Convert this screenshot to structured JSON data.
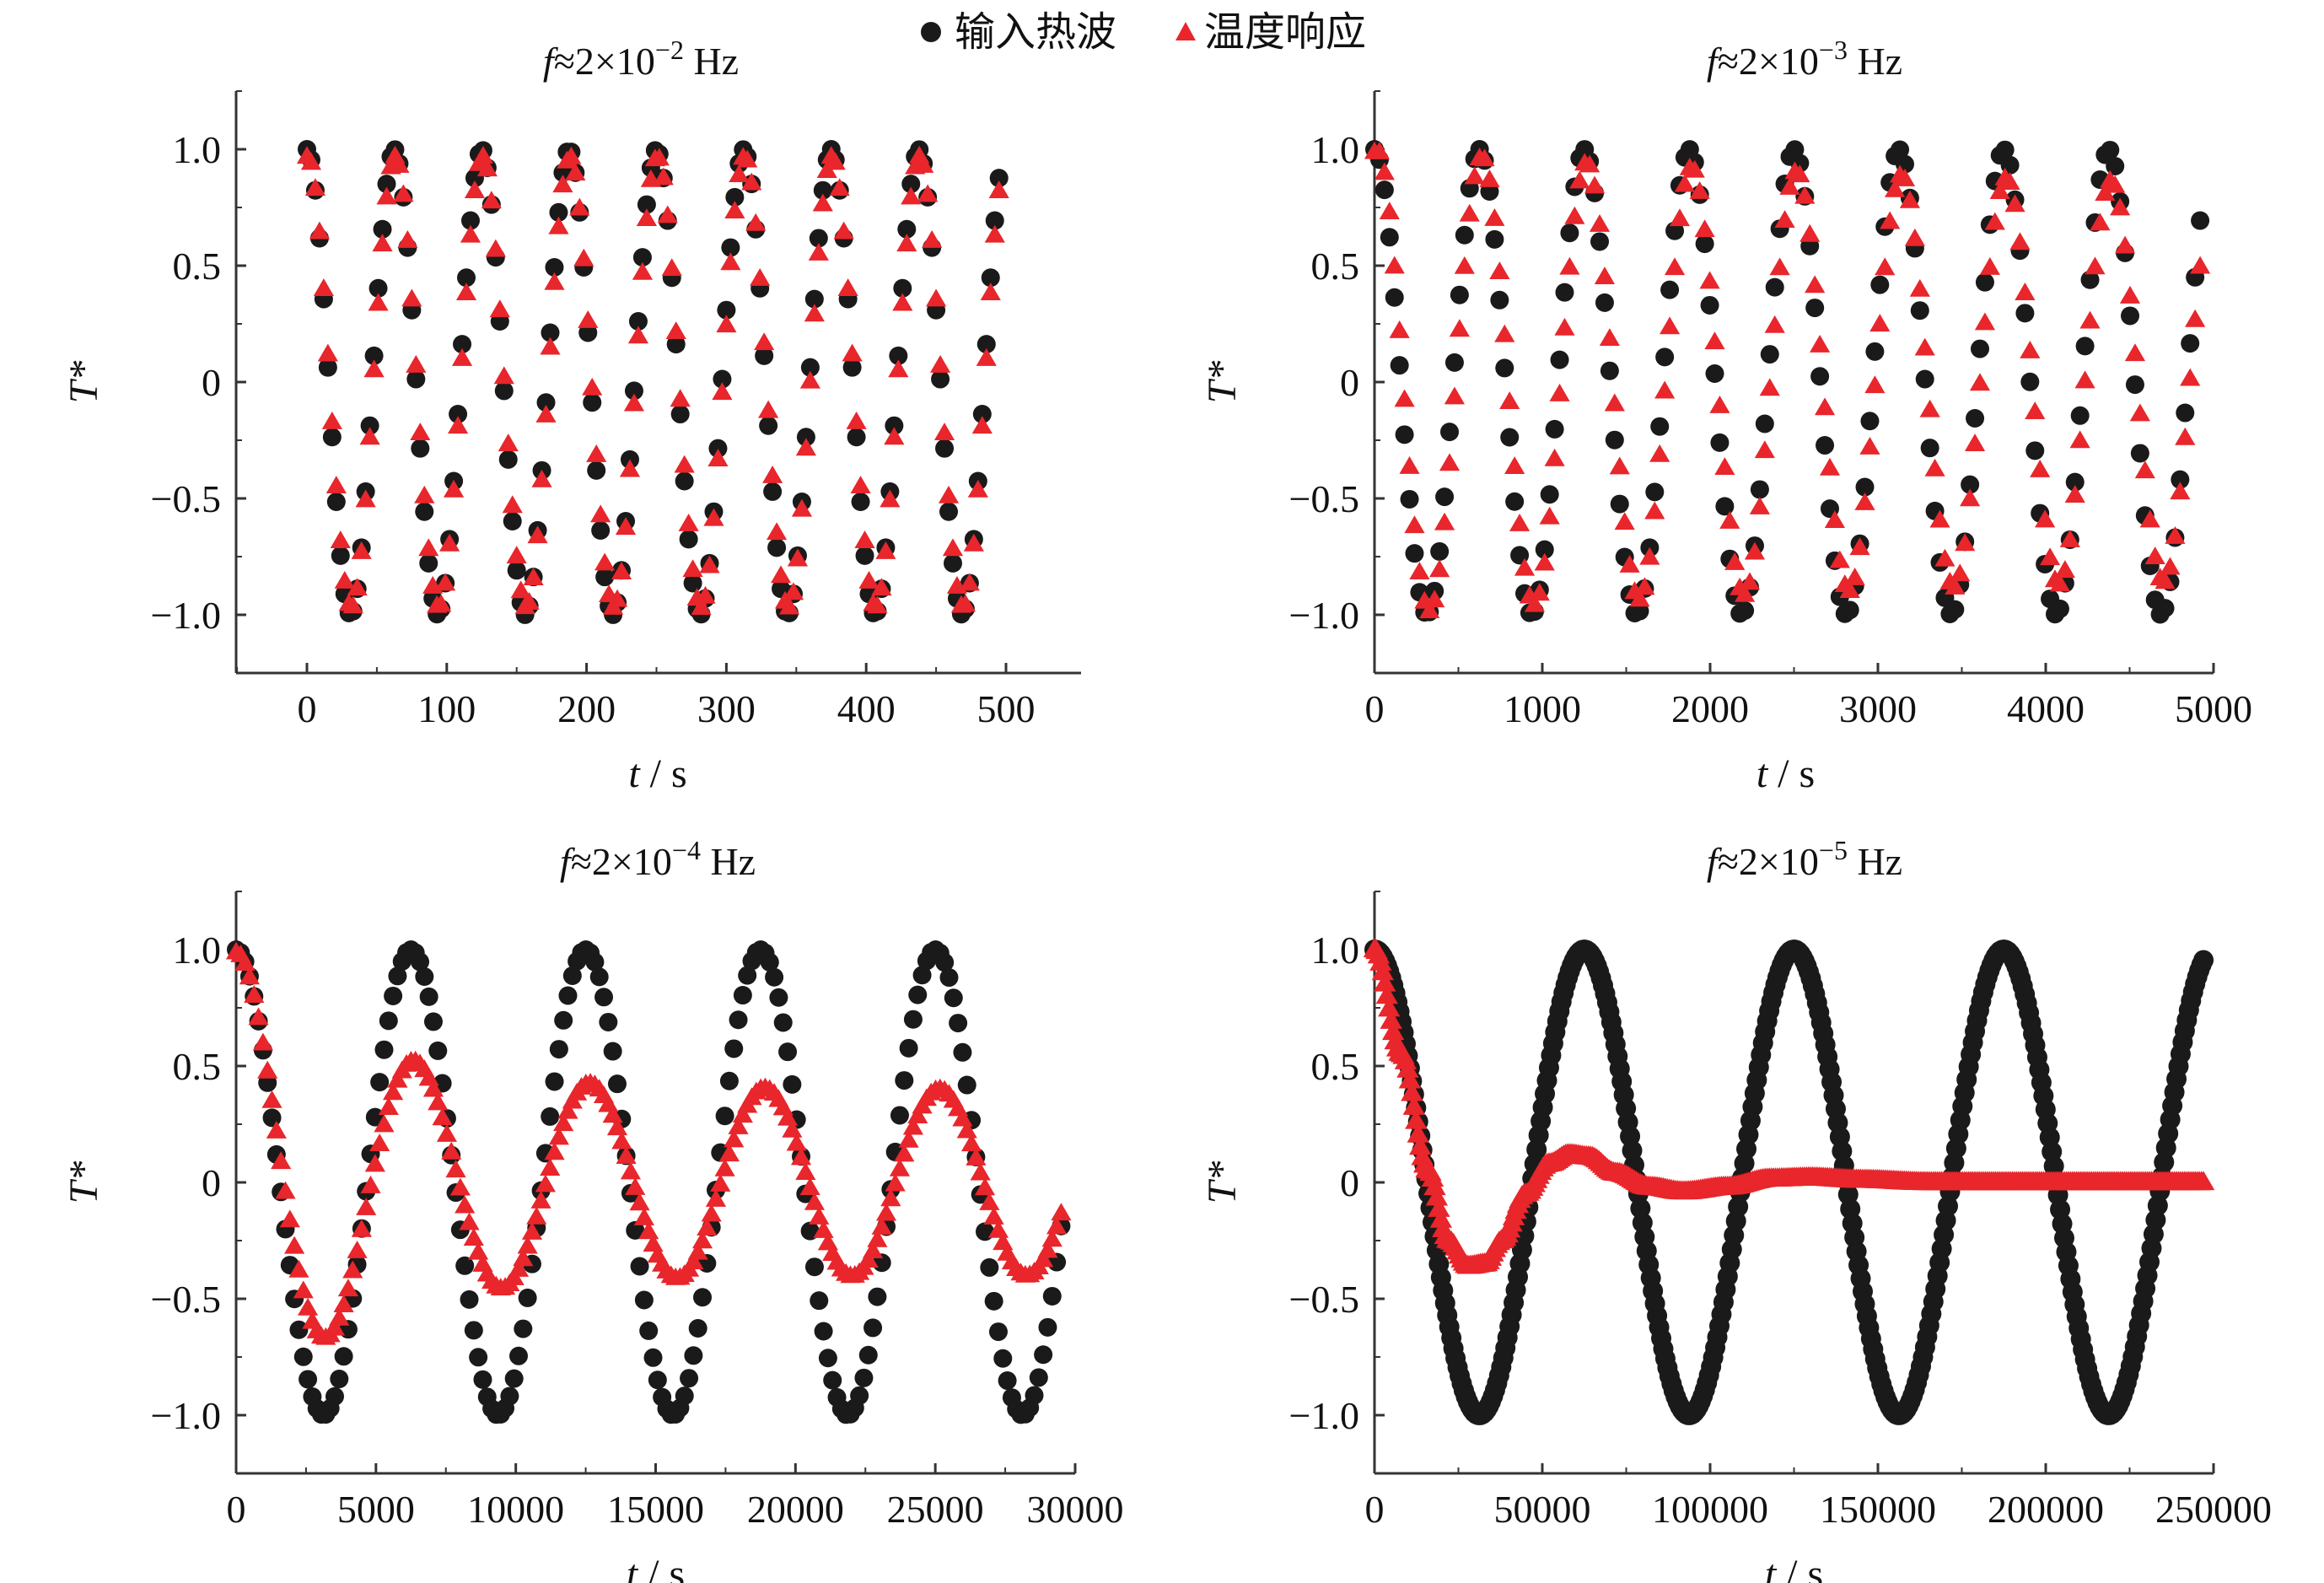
{
  "legend": {
    "input_label": "输入热波",
    "response_label": "温度响应",
    "input_color": "#1a1a1a",
    "response_color": "#e8262b",
    "input_marker": "circle",
    "response_marker": "triangle-up"
  },
  "chart_data": [
    {
      "type": "scatter",
      "title": "f≈2×10⁻² Hz",
      "title_parts": {
        "f": "f",
        "rest": "≈2×10",
        "exp": "−2",
        "unit": " Hz"
      },
      "xlabel_var": "t",
      "xlabel_unit": " / s",
      "ylabel": "T*",
      "xlim": [
        -50,
        550
      ],
      "ylim": [
        -1.25,
        1.25
      ],
      "xticks": [
        0,
        100,
        200,
        300,
        400,
        500
      ],
      "xtick_labels": [
        "0",
        "100",
        "200",
        "300",
        "400",
        "500"
      ],
      "yticks": [
        1.0,
        0.5,
        0,
        -0.5,
        -1.0
      ],
      "ytick_labels": [
        "1.0",
        "0.5",
        "0",
        "−0.5",
        "−1.0"
      ],
      "series": [
        {
          "name": "输入热波",
          "marker": "circle",
          "x_start": 0,
          "x_end": 495,
          "n_points": 166,
          "period": 62.5,
          "amplitude": 1.0,
          "lag": 0,
          "decay": 0,
          "baseline": 0
        },
        {
          "name": "温度响应",
          "marker": "triangle-up",
          "x_start": 0,
          "x_end": 495,
          "n_points": 166,
          "period": 62.5,
          "amplitude": 0.97,
          "lag": 0.6,
          "decay": 0,
          "baseline": 0
        }
      ]
    },
    {
      "type": "scatter",
      "title": "f≈2×10⁻³ Hz",
      "title_parts": {
        "f": "f",
        "rest": "≈2×10",
        "exp": "−3",
        "unit": " Hz"
      },
      "xlabel_var": "t",
      "xlabel_unit": " / s",
      "ylabel": "T*",
      "xlim": [
        0,
        5000
      ],
      "ylim": [
        -1.25,
        1.25
      ],
      "xticks": [
        0,
        1000,
        2000,
        3000,
        4000,
        5000
      ],
      "xtick_labels": [
        "0",
        "1000",
        "2000",
        "3000",
        "4000",
        "5000"
      ],
      "yticks": [
        1.0,
        0.5,
        0,
        -0.5,
        -1.0
      ],
      "ytick_labels": [
        "1.0",
        "0.5",
        "0",
        "−0.5",
        "−1.0"
      ],
      "series": [
        {
          "name": "输入热波",
          "marker": "circle",
          "x_start": 0,
          "x_end": 4920,
          "n_points": 166,
          "period": 625,
          "amplitude": 1.0,
          "lag": 0,
          "decay": 0,
          "baseline": 0
        },
        {
          "name": "温度响应",
          "marker": "triangle-up",
          "x_start": 0,
          "x_end": 4920,
          "n_points": 166,
          "period": 625,
          "amplitude": 0.8,
          "lag": 15,
          "decay": 0.00025,
          "baseline": 0
        }
      ]
    },
    {
      "type": "scatter",
      "title": "f≈2×10⁻⁴ Hz",
      "title_parts": {
        "f": "f",
        "rest": "≈2×10",
        "exp": "−4",
        "unit": " Hz"
      },
      "xlabel_var": "t",
      "xlabel_unit": " / s",
      "ylabel": "T*",
      "xlim": [
        0,
        30000
      ],
      "ylim": [
        -1.25,
        1.25
      ],
      "xticks": [
        0,
        5000,
        10000,
        15000,
        20000,
        25000,
        30000
      ],
      "xtick_labels": [
        "0",
        "5000",
        "10000",
        "15000",
        "20000",
        "25000",
        "30000"
      ],
      "yticks": [
        1.0,
        0.5,
        0,
        -0.5,
        -1.0
      ],
      "ytick_labels": [
        "1.0",
        "0.5",
        "0",
        "−0.5",
        "−1.0"
      ],
      "series": [
        {
          "name": "输入热波",
          "marker": "circle",
          "x_start": 0,
          "x_end": 29500,
          "n_points": 185,
          "period": 6250,
          "amplitude": 1.0,
          "lag": 0,
          "decay": 0,
          "baseline": 0
        },
        {
          "name": "温度响应",
          "marker": "triangle-up",
          "x_start": 0,
          "x_end": 29500,
          "n_points": 185,
          "period": 6250,
          "amplitude": 0.4,
          "lag": 150,
          "decay": 0.00025,
          "baseline": 0
        }
      ]
    },
    {
      "type": "scatter",
      "title": "f≈2×10⁻⁵ Hz",
      "title_parts": {
        "f": "f",
        "rest": "≈2×10",
        "exp": "−5",
        "unit": " Hz"
      },
      "xlabel_var": "t",
      "xlabel_unit": " / s",
      "ylabel": "T*",
      "xlim": [
        0,
        250000
      ],
      "ylim": [
        -1.25,
        1.25
      ],
      "xticks": [
        0,
        50000,
        100000,
        150000,
        200000,
        250000
      ],
      "xtick_labels": [
        "0",
        "50000",
        "100000",
        "150000",
        "200000",
        "250000"
      ],
      "yticks": [
        1.0,
        0.5,
        0,
        -0.5,
        -1.0
      ],
      "ytick_labels": [
        "1.0",
        "0.5",
        "0",
        "−0.5",
        "−1.0"
      ],
      "series": [
        {
          "name": "输入热波",
          "marker": "circle",
          "x_start": 0,
          "x_end": 247000,
          "n_points": 400,
          "period": 62500,
          "amplitude": 1.0,
          "lag": 0,
          "decay": 0,
          "baseline": 0
        },
        {
          "name": "温度响应",
          "marker": "triangle-up",
          "x_start": 0,
          "x_end": 247000,
          "n_points": 400,
          "period": 62500,
          "amplitude": 0,
          "lag": 0,
          "decay": 0,
          "baseline": 0,
          "transient_points": [
            [
              0,
              1.0
            ],
            [
              8000,
              0.55
            ],
            [
              16000,
              0.05
            ],
            [
              22000,
              -0.25
            ],
            [
              28000,
              -0.36
            ],
            [
              33000,
              -0.35
            ],
            [
              38000,
              -0.25
            ],
            [
              45000,
              -0.05
            ],
            [
              52000,
              0.08
            ],
            [
              58000,
              0.12
            ],
            [
              64000,
              0.11
            ],
            [
              72000,
              0.04
            ],
            [
              82000,
              -0.02
            ],
            [
              92000,
              -0.04
            ],
            [
              105000,
              -0.02
            ],
            [
              118000,
              0.015
            ],
            [
              130000,
              0.02
            ],
            [
              145000,
              0.01
            ],
            [
              165000,
              0.0
            ],
            [
              200000,
              0.0
            ],
            [
              247000,
              0.0
            ]
          ]
        }
      ]
    }
  ]
}
